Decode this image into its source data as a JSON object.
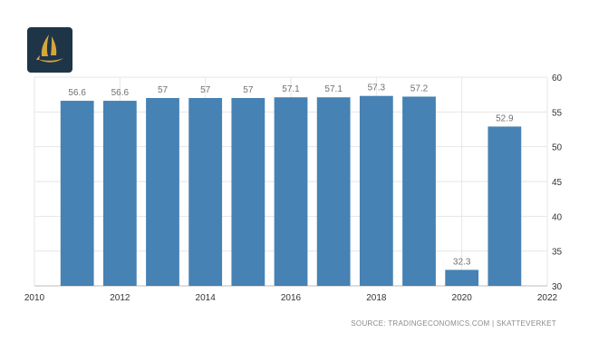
{
  "logo": {
    "icon": "gold-sail-emblem-icon",
    "background": "#1e3548",
    "accent": "#d4a73c"
  },
  "chart_data": {
    "type": "bar",
    "title": "",
    "xlabel": "",
    "ylabel": "",
    "bar_color": "#4682b4",
    "x": [
      2011,
      2012,
      2013,
      2014,
      2015,
      2016,
      2017,
      2018,
      2019,
      2020,
      2021
    ],
    "values": [
      56.6,
      56.6,
      57,
      57,
      57,
      57.1,
      57.1,
      57.3,
      57.2,
      32.3,
      52.9
    ],
    "data_labels": [
      "56.6",
      "56.6",
      "57",
      "57",
      "57",
      "57.1",
      "57.1",
      "57.3",
      "57.2",
      "32.3",
      "52.9"
    ],
    "xlim": [
      2010,
      2022
    ],
    "ylim": [
      30,
      60
    ],
    "x_ticks": [
      "2010",
      "2012",
      "2014",
      "2016",
      "2018",
      "2020",
      "2022"
    ],
    "y_ticks": [
      "30",
      "35",
      "40",
      "45",
      "50",
      "55",
      "60"
    ],
    "y_axis_side": "right",
    "grid": true
  },
  "source_text": "SOURCE: TRADINGECONOMICS.COM  |  SKATTEVERKET"
}
